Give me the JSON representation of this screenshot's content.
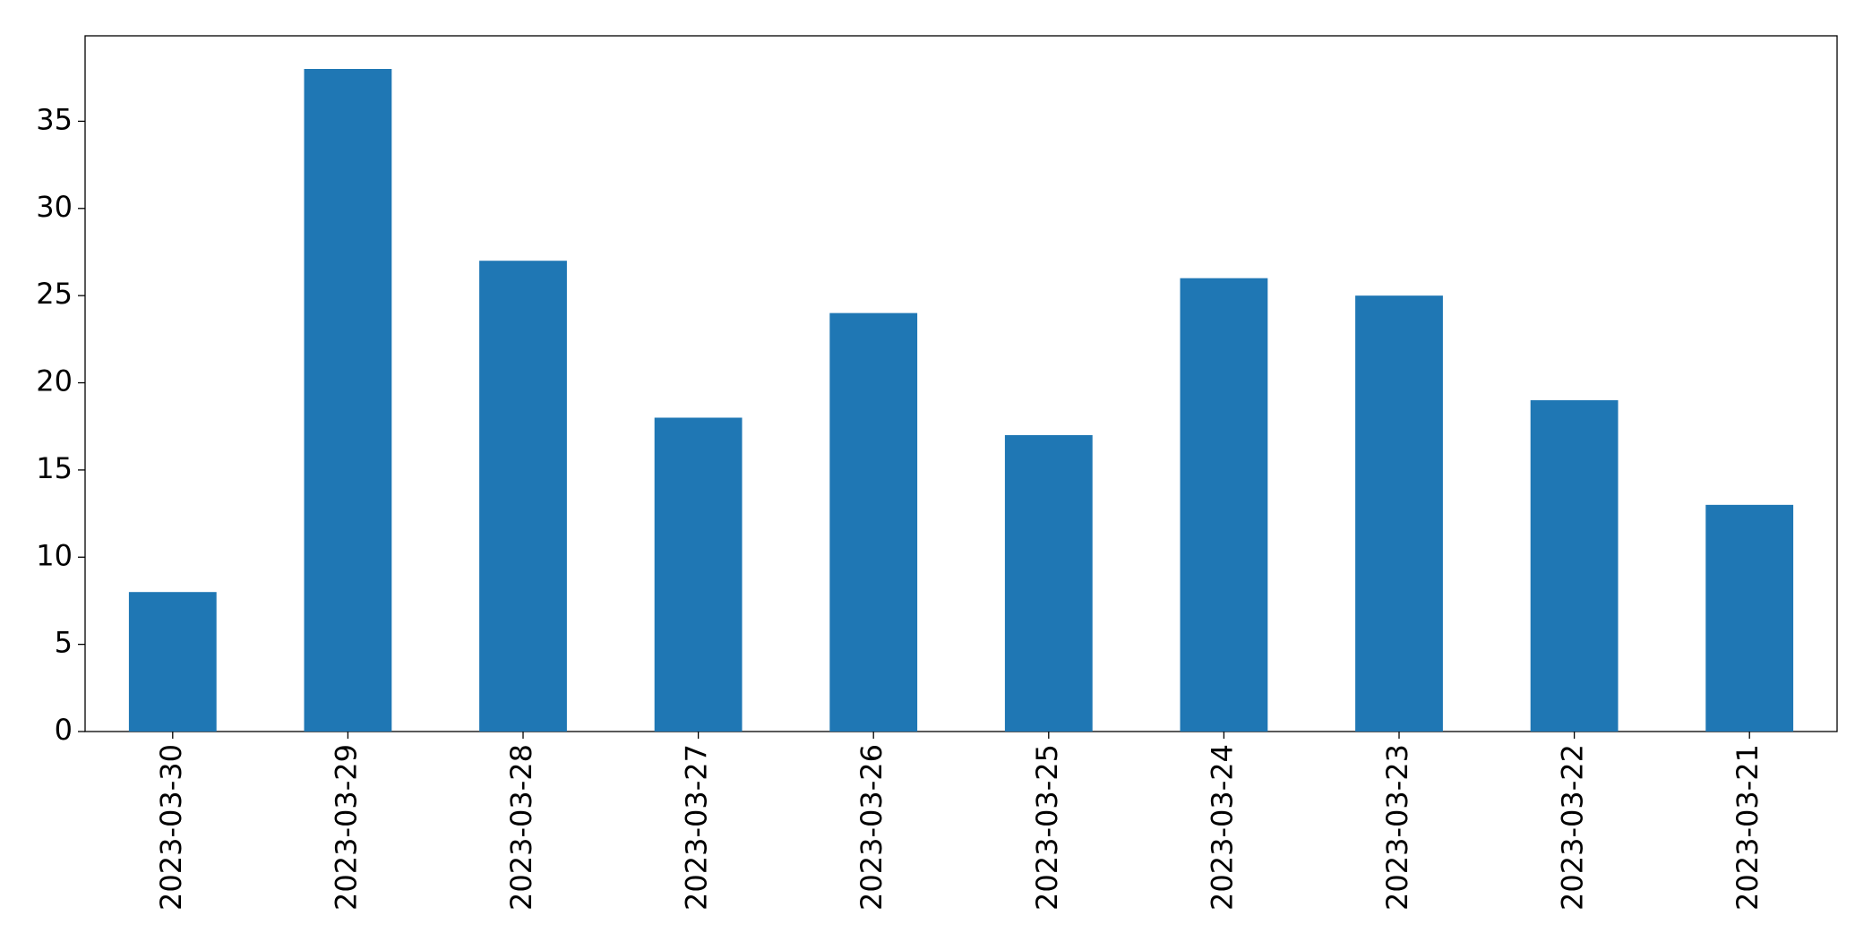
{
  "chart_data": {
    "type": "bar",
    "categories": [
      "2023-03-30",
      "2023-03-29",
      "2023-03-28",
      "2023-03-27",
      "2023-03-26",
      "2023-03-25",
      "2023-03-24",
      "2023-03-23",
      "2023-03-22",
      "2023-03-21"
    ],
    "values": [
      8,
      38,
      27,
      18,
      24,
      17,
      26,
      25,
      19,
      13
    ],
    "color": "#1f77b4",
    "ylim": [
      0,
      39.9
    ],
    "yticks": [
      0,
      5,
      10,
      15,
      20,
      25,
      30,
      35
    ],
    "grid": false
  }
}
